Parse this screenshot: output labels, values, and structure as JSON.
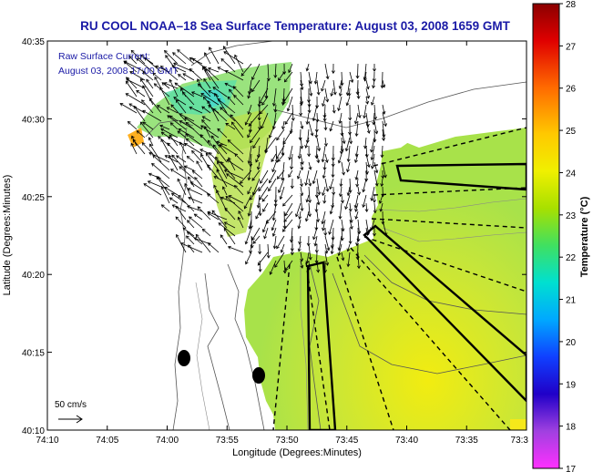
{
  "title": "RU COOL  NOAA–18  Sea Surface Temperature:  August 03, 2008 1659 GMT",
  "annotation": {
    "line1": "Raw Surface Current:",
    "line2": "August 03, 2008 17:00 GMT"
  },
  "scale": {
    "label": "50 cm/s"
  },
  "axes": {
    "xlabel": "Longitude (Degrees:Minutes)",
    "ylabel": "Latitude (Degrees:Minutes)",
    "x_ticks": [
      "74:10",
      "74:05",
      "74:00",
      "73:55",
      "73:50",
      "73:45",
      "73:40",
      "73:35",
      "73:3"
    ],
    "y_ticks": [
      "40:35",
      "40:30",
      "40:25",
      "40:20",
      "40:15",
      "40:10"
    ]
  },
  "colorbar": {
    "label": "Temperature (°C)",
    "ticks": [
      "28",
      "27",
      "26",
      "25",
      "24",
      "23",
      "22",
      "21",
      "20",
      "19",
      "18",
      "17"
    ],
    "range": [
      17,
      28
    ]
  },
  "colors": {
    "title": "#1a1aa6",
    "annotation": "#1a1aa6",
    "land": "#ffffff",
    "water_sst": "#b6e23c",
    "frame": "#000000"
  }
}
